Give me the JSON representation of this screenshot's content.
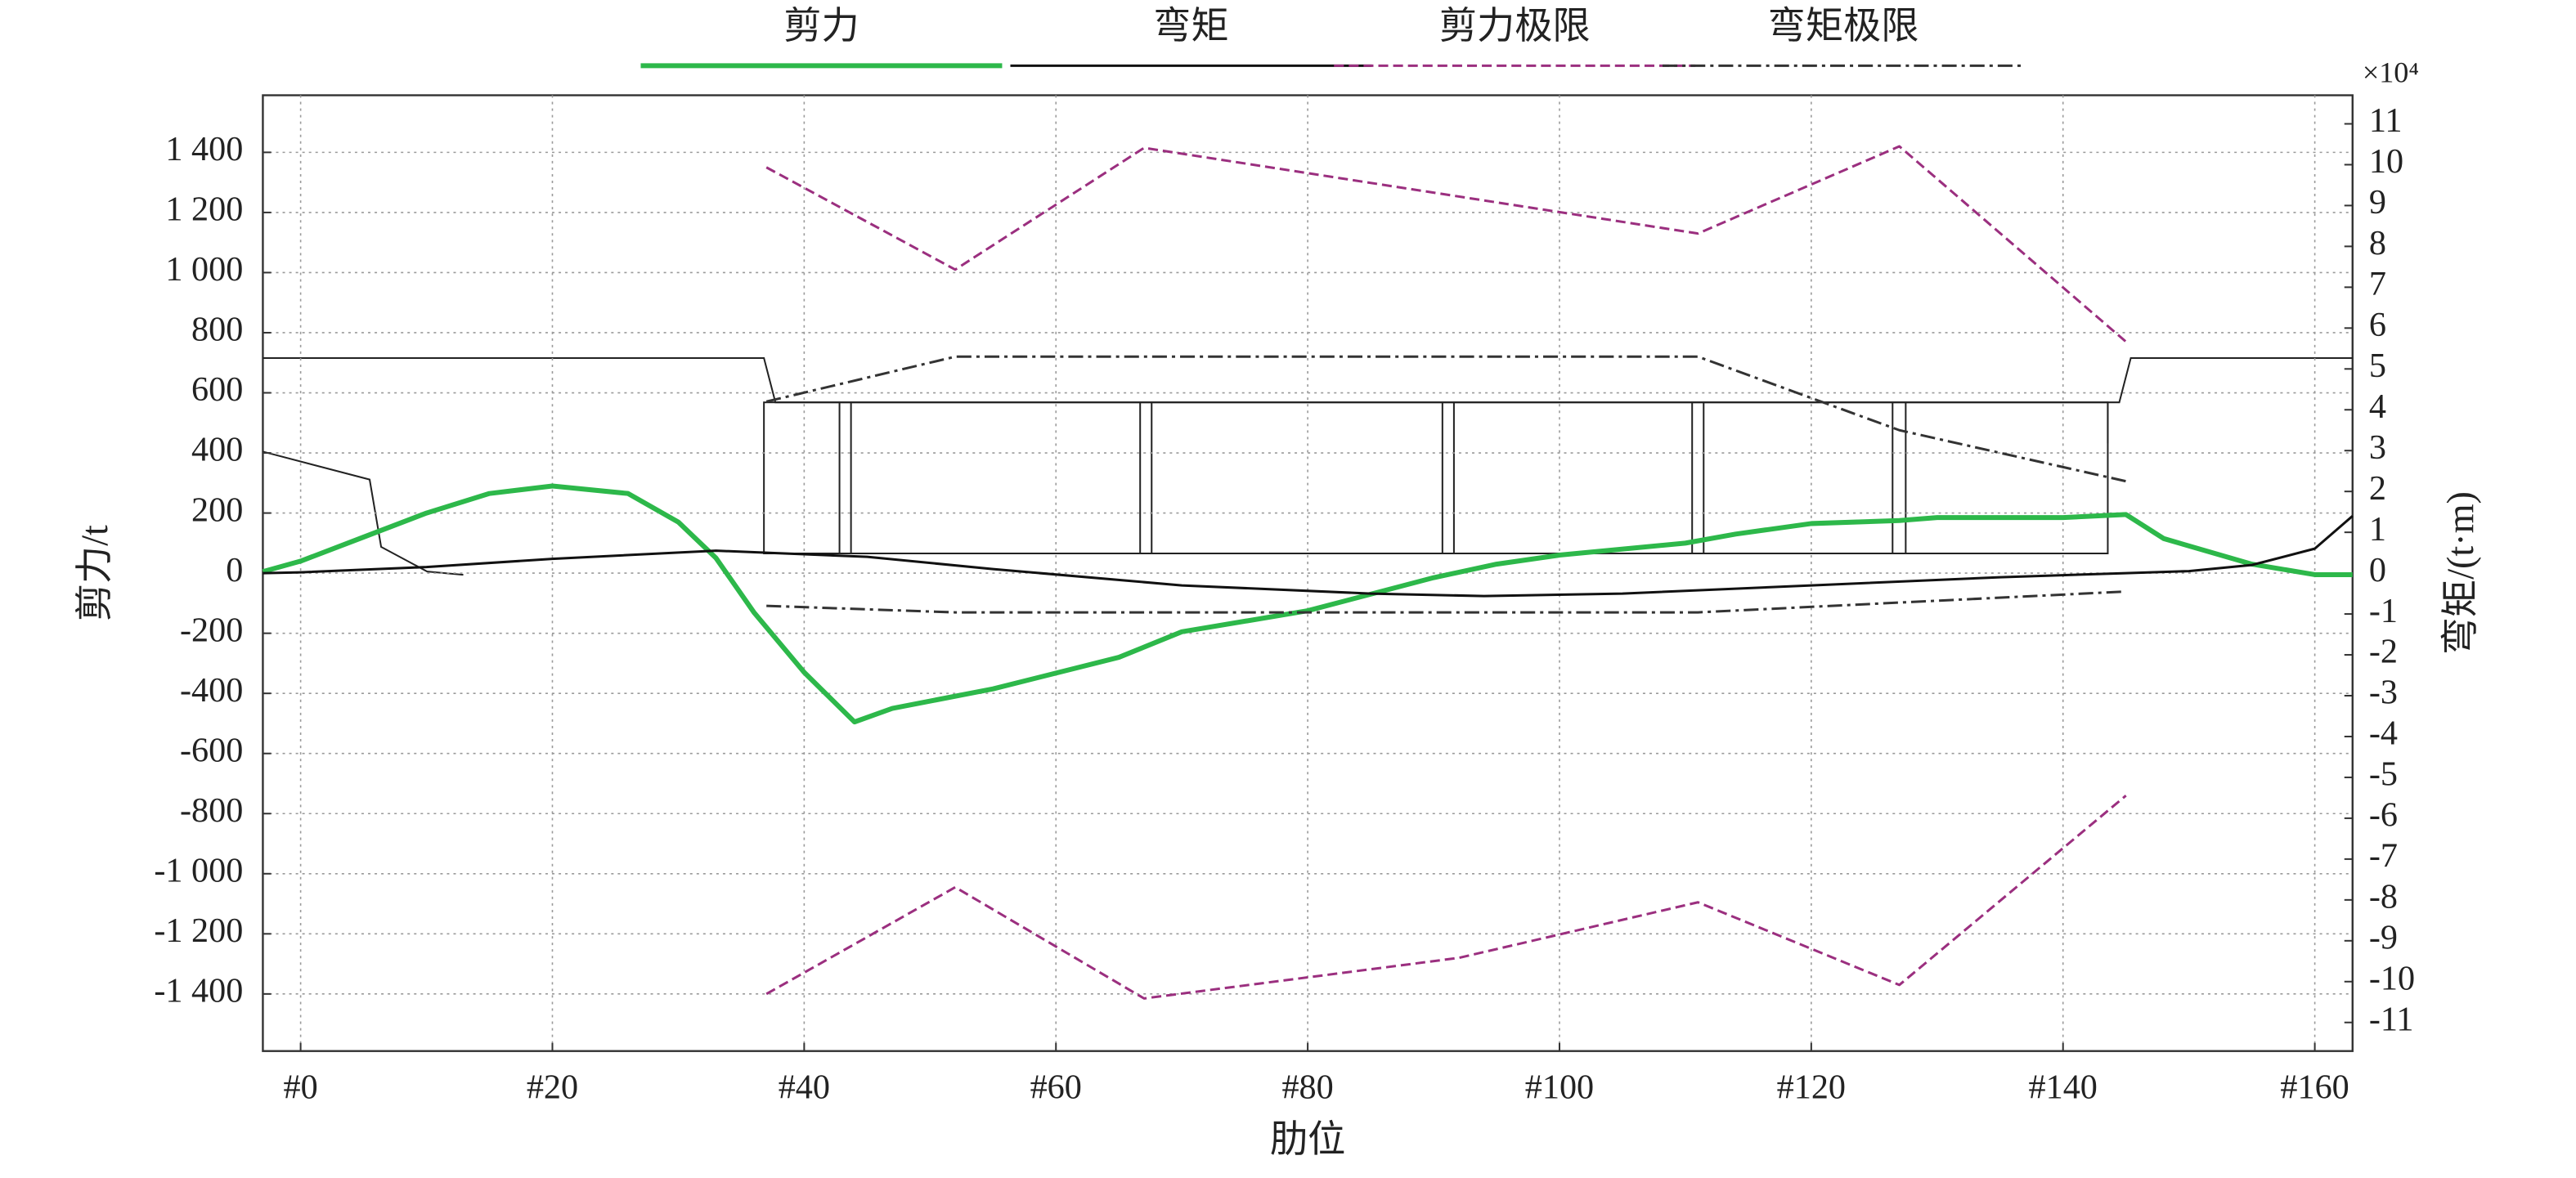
{
  "chart_data": {
    "type": "line",
    "x_label": "肋位",
    "y_label": "剪力/t",
    "y2_label": "弯矩/(t·m)",
    "y2_multiplier": "×10⁴",
    "grid": true,
    "legend": "top",
    "xlim": [
      -3,
      163
    ],
    "xticks": [
      {
        "value": 0,
        "label": "#0"
      },
      {
        "value": 20,
        "label": "#20"
      },
      {
        "value": 40,
        "label": "#40"
      },
      {
        "value": 60,
        "label": "#60"
      },
      {
        "value": 80,
        "label": "#80"
      },
      {
        "value": 100,
        "label": "#100"
      },
      {
        "value": 120,
        "label": "#120"
      },
      {
        "value": 140,
        "label": "#140"
      },
      {
        "value": 160,
        "label": "#160"
      }
    ],
    "ylim": [
      -1590,
      1590
    ],
    "yticks": [
      {
        "value": -1400,
        "label": "-1 400"
      },
      {
        "value": -1200,
        "label": "-1 200"
      },
      {
        "value": -1000,
        "label": "-1 000"
      },
      -800,
      -600,
      -400,
      -200,
      0,
      200,
      400,
      600,
      800,
      {
        "value": 1000,
        "label": "1 000"
      },
      {
        "value": 1200,
        "label": "1 200"
      },
      {
        "value": 1400,
        "label": "1 400"
      }
    ],
    "y2lim": [
      -11.7,
      11.7
    ],
    "y2ticks": [
      -11,
      -10,
      -9,
      -8,
      -7,
      -6,
      -5,
      -4,
      -3,
      -2,
      -1,
      0,
      1,
      2,
      3,
      4,
      5,
      6,
      7,
      8,
      9,
      10,
      11
    ],
    "series": [
      {
        "name": "剪力",
        "color": "#2db84a",
        "dash": "solid",
        "width": 3,
        "x": [
          -3,
          0,
          5,
          10,
          15,
          20,
          26,
          30,
          33,
          36,
          40,
          44,
          47,
          55,
          65,
          70,
          80,
          90,
          95,
          100,
          110,
          114,
          120,
          127,
          130,
          140,
          145,
          148,
          155,
          160,
          163
        ],
        "values": [
          5,
          40,
          120,
          200,
          265,
          290,
          265,
          170,
          50,
          -130,
          -330,
          -495,
          -450,
          -385,
          -280,
          -195,
          -125,
          -15,
          30,
          60,
          100,
          130,
          165,
          175,
          185,
          185,
          195,
          115,
          30,
          -5,
          -5
        ]
      },
      {
        "name": "弯矩",
        "color": "#111111",
        "dash": "solid",
        "width": 1.5,
        "axis": "y2",
        "x": [
          -3,
          0,
          10,
          20,
          33,
          45,
          55,
          70,
          85,
          94,
          105,
          120,
          135,
          145,
          150,
          155,
          160,
          163
        ],
        "values": [
          0,
          0.02,
          0.15,
          0.35,
          0.55,
          0.4,
          0.1,
          -0.3,
          -0.5,
          -0.56,
          -0.5,
          -0.3,
          -0.1,
          0,
          0.05,
          0.2,
          0.6,
          1.4
        ]
      },
      {
        "name": "剪力极限",
        "color": "#9b2f7f",
        "dash": "dashed",
        "width": 1.5,
        "x": [
          37,
          52,
          67,
          111,
          127,
          145,
          null,
          37,
          52,
          67,
          92,
          111,
          127,
          145
        ],
        "values": [
          1350,
          1010,
          1415,
          1130,
          1420,
          770,
          null,
          -1400,
          -1045,
          -1415,
          -1280,
          -1095,
          -1370,
          -740
        ]
      },
      {
        "name": "弯矩极限",
        "color": "#333333",
        "dash": "dashdot",
        "width": 1.5,
        "axis": "y2",
        "x": [
          37,
          52,
          111,
          127,
          145,
          null,
          37,
          52,
          111,
          145
        ],
        "values": [
          4.2,
          5.3,
          5.3,
          3.5,
          2.25,
          null,
          -0.8,
          -0.96,
          -0.96,
          -0.45
        ]
      }
    ]
  }
}
